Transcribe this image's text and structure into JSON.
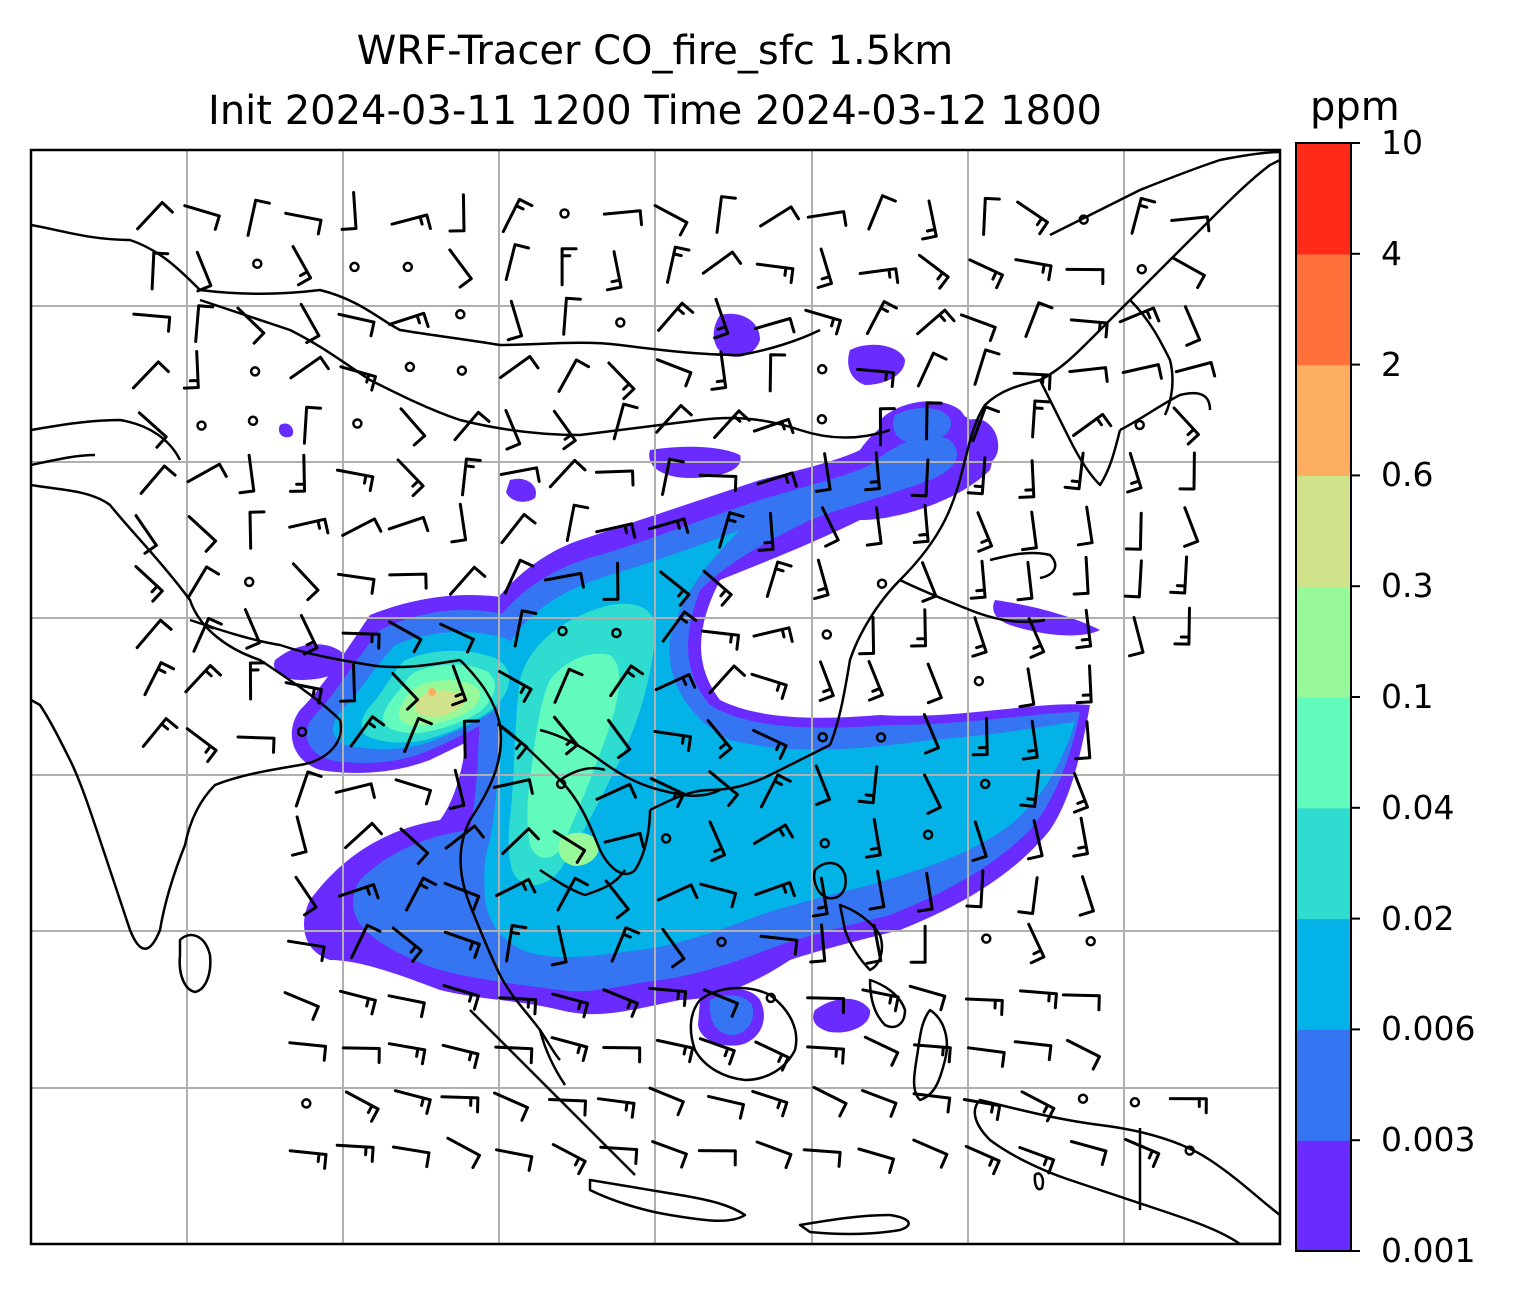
{
  "title": {
    "line1": "WRF-Tracer CO_fire_sfc 1.5km",
    "line2": "Init 2024-03-11 1200 Time 2024-03-12 1800"
  },
  "colorbar": {
    "unit": "ppm",
    "levels": [
      "0.001",
      "0.003",
      "0.006",
      "0.02",
      "0.04",
      "0.1",
      "0.3",
      "0.6",
      "2",
      "4",
      "10"
    ],
    "colors": [
      "#6a2bff",
      "#3575f2",
      "#03b3e8",
      "#2fdcd0",
      "#62fbbd",
      "#97f999",
      "#d1e38a",
      "#fdae61",
      "#fe713b",
      "#ff2a17"
    ]
  },
  "map": {
    "gridlines": true,
    "land_outline_color": "#000000",
    "gridline_color": "#b0b0b0",
    "overlay": "wind barbs"
  }
}
